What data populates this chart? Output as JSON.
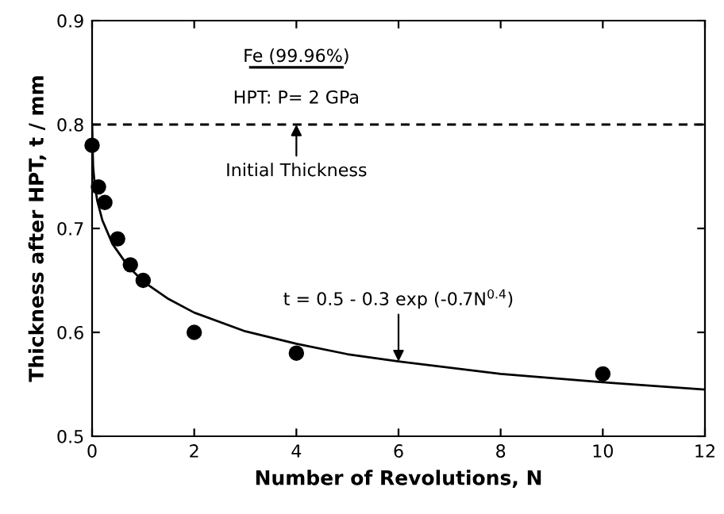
{
  "chart_data": {
    "type": "line",
    "xlabel": "Number of Revolutions, N",
    "ylabel": "Thickness after HPT, t / mm",
    "xlim": [
      0,
      12
    ],
    "ylim": [
      0.5,
      0.9
    ],
    "xticks": [
      0,
      2,
      4,
      6,
      8,
      10,
      12
    ],
    "yticks": [
      0.5,
      0.6,
      0.7,
      0.8,
      0.9
    ],
    "grid": false,
    "series": [
      {
        "type": "scatter",
        "marker": "circle",
        "color": "#000000",
        "x": [
          0,
          0.125,
          0.25,
          0.5,
          0.75,
          1,
          2,
          4,
          10
        ],
        "values": [
          0.78,
          0.74,
          0.725,
          0.69,
          0.665,
          0.65,
          0.6,
          0.58,
          0.56
        ]
      },
      {
        "color": "#000000",
        "line_style": "solid",
        "x": [
          0,
          0.02,
          0.05,
          0.1,
          0.2,
          0.4,
          0.7,
          1,
          1.5,
          2,
          3,
          4,
          5,
          6,
          8,
          10,
          12
        ],
        "values": [
          0.8,
          0.759,
          0.743,
          0.727,
          0.708,
          0.685,
          0.664,
          0.649,
          0.632,
          0.619,
          0.601,
          0.589,
          0.579,
          0.572,
          0.56,
          0.552,
          0.545
        ]
      }
    ],
    "ref_lines": [
      {
        "axis": "y",
        "value": 0.8,
        "label": "Initial Thickness",
        "line_style": "dashed",
        "color": "#000000"
      }
    ],
    "annotations": [
      "Fe (99.96%)",
      "HPT: P= 2 GPa",
      {
        "text": "t = 0.5 - 0.3 exp (-0.7N$^{0.4}$)",
        "x": 6,
        "y": 0.572
      }
    ]
  }
}
